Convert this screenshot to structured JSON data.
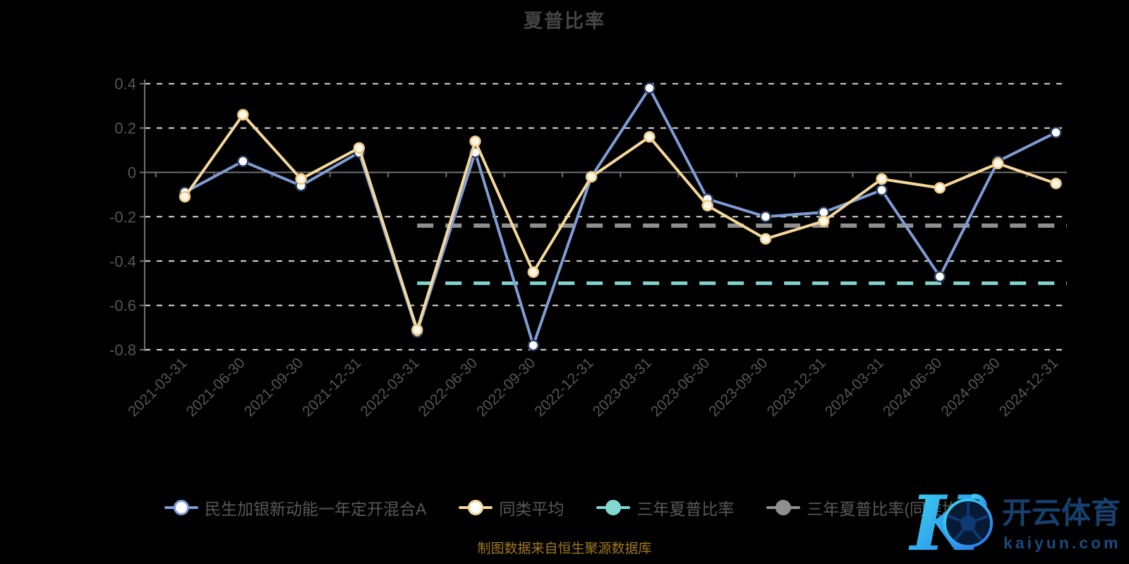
{
  "title": "夏普比率",
  "caption": "制图数据来自恒生聚源数据库",
  "colors": {
    "background": "#000000",
    "title_text": "#454545",
    "axis_label": "#565656",
    "grid_dash": "#dcdcdc",
    "axis_line": "#6f6f6f",
    "legend_text": "#585858",
    "caption_text": "#a0791e",
    "fund_blue": "#7e9cd6",
    "peer_yellow": "#f5d898",
    "three_year_teal": "#82d8d0",
    "three_year_gray": "#8f8f8f"
  },
  "chart_data": {
    "type": "line",
    "title": "夏普比率",
    "categories": [
      "2021-03-31",
      "2021-06-30",
      "2021-09-30",
      "2021-12-31",
      "2022-03-31",
      "2022-06-30",
      "2022-09-30",
      "2022-12-31",
      "2023-03-31",
      "2023-06-30",
      "2023-09-30",
      "2023-12-31",
      "2024-03-31",
      "2024-06-30",
      "2024-09-30",
      "2024-12-31"
    ],
    "series": [
      {
        "name": "民生加银新动能一年定开混合A",
        "style": "line-markers",
        "color": "#7e9cd6",
        "marker_fill": "#ffffff",
        "marker_ring": "#2a3f63",
        "values": [
          -0.09,
          0.05,
          -0.06,
          0.09,
          -0.72,
          0.09,
          -0.78,
          -0.02,
          0.38,
          -0.12,
          -0.2,
          -0.18,
          -0.08,
          -0.47,
          0.05,
          0.18
        ]
      },
      {
        "name": "同类平均",
        "style": "line-markers",
        "color": "#f5d898",
        "marker_fill": "#fdf7ea",
        "marker_ring": "#eec87f",
        "values": [
          -0.11,
          0.26,
          -0.03,
          0.11,
          -0.71,
          0.14,
          -0.45,
          -0.02,
          0.16,
          -0.15,
          -0.3,
          -0.22,
          -0.03,
          -0.07,
          0.04,
          -0.05
        ]
      },
      {
        "name": "三年夏普比率",
        "style": "constant-dashed",
        "color": "#82d8d0",
        "stroke_width": 5,
        "value": -0.5,
        "start_category": "2022-03-31"
      },
      {
        "name": "三年夏普比率(同类均值)",
        "style": "constant-dashed",
        "color": "#8f8f8f",
        "stroke_width": 6,
        "value": -0.24,
        "start_category": "2022-03-31"
      }
    ],
    "ylim": [
      -0.8,
      0.4
    ],
    "yticks": [
      0.4,
      0.2,
      0,
      -0.2,
      -0.4,
      -0.6,
      -0.8
    ],
    "grid": "horizontal-dashed",
    "x_label_rotation": 45,
    "legend_position": "bottom"
  },
  "legend": {
    "items": [
      {
        "label": "民生加银新动能一年定开混合A",
        "color": "#7e9cd6",
        "dot": "hollow"
      },
      {
        "label": "同类平均",
        "color": "#f5d898",
        "dot": "hollow"
      },
      {
        "label": "三年夏普比率",
        "color": "#82d8d0",
        "dot": "solid"
      },
      {
        "label": "三年夏普比率(同类均值)",
        "color": "#8f8f8f",
        "dot": "solid"
      }
    ]
  },
  "watermark": {
    "k_letter": "K",
    "brand": "开云体育",
    "url_text": "kaiyun.com"
  }
}
